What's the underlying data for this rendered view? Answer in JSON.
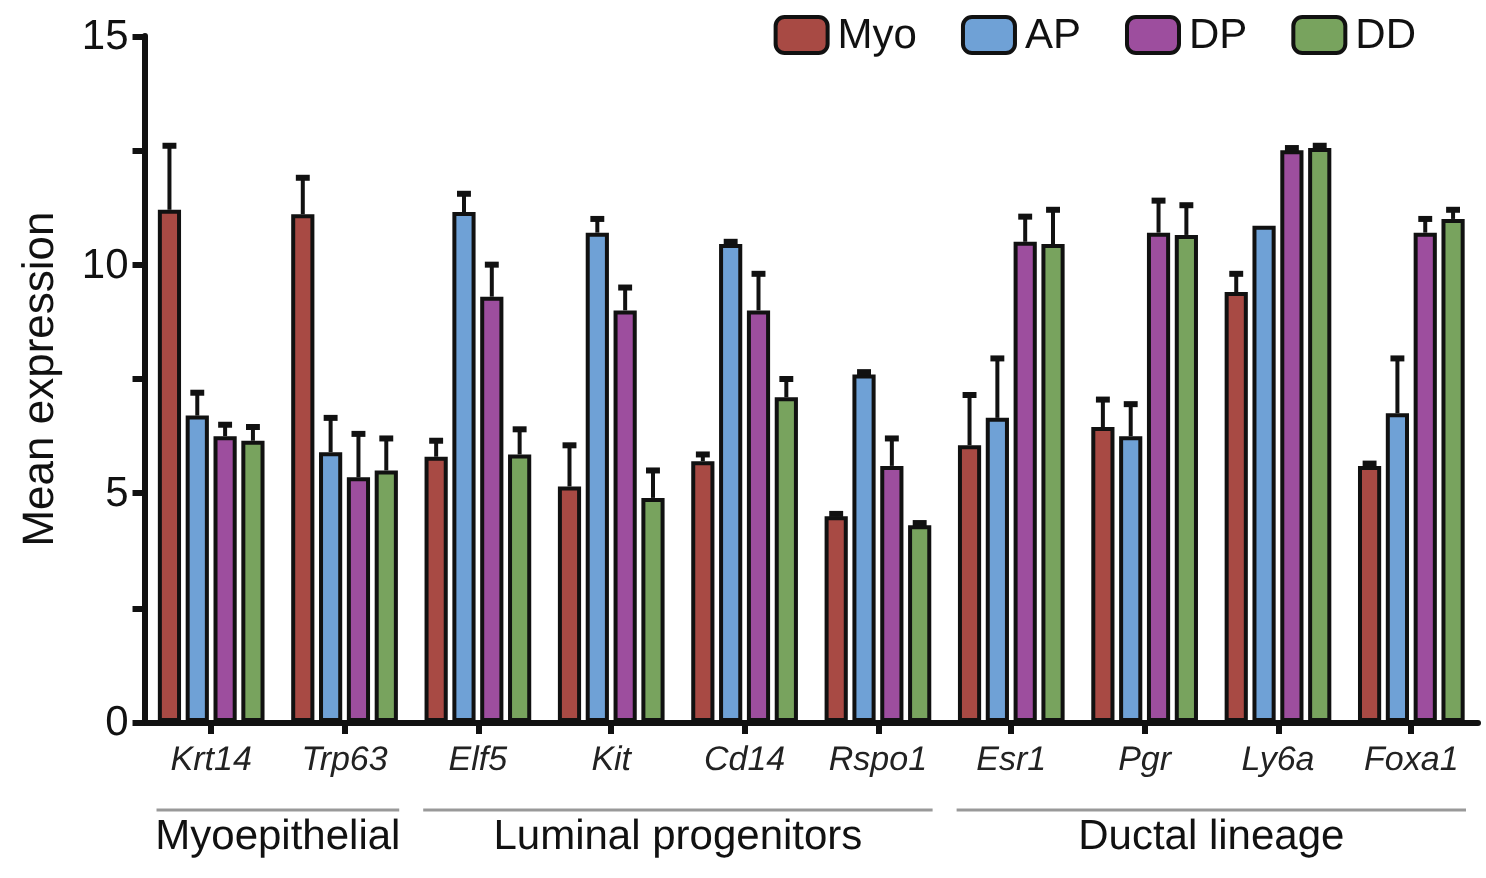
{
  "chart_data": {
    "type": "bar",
    "ylabel": "Mean expression",
    "categories": [
      "Krt14",
      "Trp63",
      "Elf5",
      "Kit",
      "Cd14",
      "Rspo1",
      "Esr1",
      "Pgr",
      "Ly6a",
      "Foxa1"
    ],
    "series": [
      {
        "name": "Myo",
        "color": "#a84a44",
        "values": [
          11.2,
          11.1,
          5.8,
          5.15,
          5.7,
          4.5,
          6.05,
          6.45,
          9.4,
          5.6
        ],
        "errors": [
          [
            11.2,
            12.6
          ],
          [
            11.1,
            11.9
          ],
          [
            5.8,
            6.15
          ],
          [
            5.15,
            6.05
          ],
          [
            5.7,
            5.85
          ],
          [
            4.5,
            4.55
          ],
          [
            6.05,
            7.15
          ],
          [
            6.45,
            7.05
          ],
          [
            9.4,
            9.8
          ],
          [
            5.6,
            5.65
          ]
        ]
      },
      {
        "name": "AP",
        "color": "#6fa1d6",
        "values": [
          6.7,
          5.9,
          11.15,
          10.7,
          10.45,
          7.6,
          6.65,
          6.25,
          10.85,
          6.75
        ],
        "errors": [
          [
            6.7,
            7.2
          ],
          [
            5.9,
            6.65
          ],
          [
            11.15,
            11.55
          ],
          [
            10.7,
            11.0
          ],
          [
            10.45,
            10.5
          ],
          [
            7.6,
            7.65
          ],
          [
            6.65,
            7.95
          ],
          [
            6.25,
            6.95
          ],
          null,
          [
            6.75,
            7.95
          ]
        ]
      },
      {
        "name": "DP",
        "color": "#9d4e9e",
        "values": [
          6.25,
          5.35,
          9.3,
          9.0,
          9.0,
          5.6,
          10.5,
          10.7,
          12.5,
          10.7
        ],
        "errors": [
          [
            6.25,
            6.5
          ],
          [
            5.35,
            6.3
          ],
          [
            9.3,
            10.0
          ],
          [
            9.0,
            9.5
          ],
          [
            9.0,
            9.8
          ],
          [
            5.6,
            6.2
          ],
          [
            10.5,
            11.05
          ],
          [
            10.7,
            11.4
          ],
          [
            12.5,
            12.55
          ],
          [
            10.7,
            11.0
          ]
        ]
      },
      {
        "name": "DD",
        "color": "#78a35e",
        "values": [
          6.15,
          5.5,
          5.85,
          4.9,
          7.1,
          4.3,
          10.45,
          10.65,
          12.55,
          11.0
        ],
        "errors": [
          [
            6.15,
            6.45
          ],
          [
            5.5,
            6.2
          ],
          [
            5.85,
            6.4
          ],
          [
            4.9,
            5.5
          ],
          [
            7.1,
            7.5
          ],
          [
            4.3,
            4.35
          ],
          [
            10.45,
            11.2
          ],
          [
            10.65,
            11.3
          ],
          [
            12.55,
            12.6
          ],
          [
            11.0,
            11.2
          ]
        ]
      }
    ],
    "ylim": [
      0,
      15
    ],
    "yticks": [
      0,
      {
        "value": 2.5,
        "label": null
      },
      5,
      {
        "value": 7.5,
        "label": null
      },
      10,
      {
        "value": 12.5,
        "label": null
      },
      15
    ],
    "annotations": [
      "Myoepithelial",
      "Luminal progenitors",
      "Ductal lineage"
    ],
    "grid": false,
    "legend": "top right"
  }
}
